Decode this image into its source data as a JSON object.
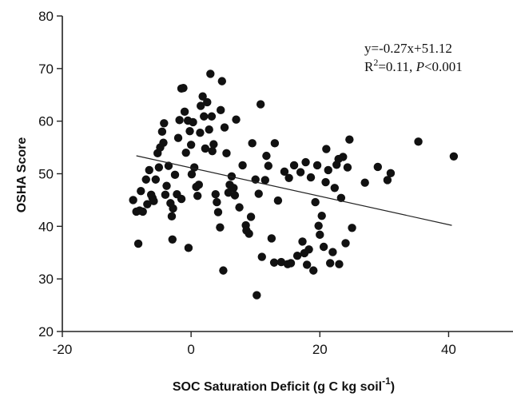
{
  "chart_data": {
    "type": "scatter",
    "xlabel": "SOC Saturation Deficit (g C kg soil",
    "xlabel_superscript": "-1",
    "xlabel_close": ")",
    "ylabel": "OSHA Score",
    "xlim": [
      -20,
      50
    ],
    "ylim": [
      20,
      80
    ],
    "xticks": [
      -20,
      0,
      20,
      40
    ],
    "yticks": [
      20,
      30,
      40,
      50,
      60,
      70,
      80
    ],
    "grid": false,
    "annotations": {
      "equation": "y=-0.27x+51.12",
      "r2_prefix": "R",
      "r2_sup": "2",
      "r2_mid": "=0.11, ",
      "p_italic": "P",
      "p_suffix": "<0.001"
    },
    "fit_line": {
      "slope": -0.27,
      "intercept": 51.12,
      "x_range": [
        -8.5,
        40.5
      ]
    },
    "points": [
      [
        -8.5,
        42.8
      ],
      [
        -8.2,
        36.7
      ],
      [
        -8.0,
        43.0
      ],
      [
        -7.8,
        46.7
      ],
      [
        -7.5,
        42.8
      ],
      [
        -7.0,
        48.9
      ],
      [
        -6.5,
        50.7
      ],
      [
        -6.2,
        46.0
      ],
      [
        -6.0,
        45.4
      ],
      [
        -5.8,
        44.8
      ],
      [
        -5.5,
        48.9
      ],
      [
        -5.2,
        53.9
      ],
      [
        -5.0,
        51.2
      ],
      [
        -4.8,
        55.0
      ],
      [
        -4.5,
        58.0
      ],
      [
        -4.2,
        59.6
      ],
      [
        -4.0,
        46.0
      ],
      [
        -3.8,
        47.7
      ],
      [
        -3.5,
        51.5
      ],
      [
        -3.2,
        44.4
      ],
      [
        -3.0,
        41.9
      ],
      [
        -2.8,
        43.4
      ],
      [
        -2.5,
        49.8
      ],
      [
        -2.2,
        46.1
      ],
      [
        -2.0,
        56.8
      ],
      [
        -1.8,
        60.2
      ],
      [
        -1.5,
        66.2
      ],
      [
        -1.2,
        66.3
      ],
      [
        -1.0,
        61.8
      ],
      [
        -0.8,
        54.0
      ],
      [
        -0.5,
        60.1
      ],
      [
        -0.2,
        58.1
      ],
      [
        0.0,
        55.5
      ],
      [
        0.3,
        59.8
      ],
      [
        0.5,
        51.2
      ],
      [
        0.8,
        47.5
      ],
      [
        1.0,
        45.8
      ],
      [
        1.2,
        47.9
      ],
      [
        1.5,
        62.9
      ],
      [
        1.8,
        64.7
      ],
      [
        2.0,
        60.9
      ],
      [
        2.2,
        54.8
      ],
      [
        2.5,
        63.6
      ],
      [
        2.8,
        58.4
      ],
      [
        3.0,
        69.0
      ],
      [
        3.2,
        60.9
      ],
      [
        3.5,
        55.6
      ],
      [
        3.8,
        46.1
      ],
      [
        4.0,
        44.6
      ],
      [
        4.2,
        42.7
      ],
      [
        4.5,
        39.8
      ],
      [
        4.8,
        67.6
      ],
      [
        5.0,
        31.6
      ],
      [
        5.2,
        58.8
      ],
      [
        5.5,
        53.9
      ],
      [
        5.8,
        46.4
      ],
      [
        6.0,
        47.9
      ],
      [
        6.3,
        49.5
      ],
      [
        6.6,
        47.3
      ],
      [
        7.0,
        60.3
      ],
      [
        7.5,
        43.6
      ],
      [
        8.0,
        51.6
      ],
      [
        8.5,
        40.2
      ],
      [
        9.0,
        38.6
      ],
      [
        9.5,
        55.8
      ],
      [
        10.0,
        48.9
      ],
      [
        10.2,
        26.9
      ],
      [
        10.5,
        46.2
      ],
      [
        10.8,
        63.2
      ],
      [
        11.0,
        34.2
      ],
      [
        11.5,
        48.8
      ],
      [
        12.0,
        51.5
      ],
      [
        12.5,
        37.7
      ],
      [
        13.0,
        55.8
      ],
      [
        13.5,
        44.9
      ],
      [
        14.0,
        33.2
      ],
      [
        14.5,
        50.4
      ],
      [
        15.0,
        32.8
      ],
      [
        15.5,
        33.0
      ],
      [
        16.0,
        51.6
      ],
      [
        16.5,
        34.4
      ],
      [
        17.0,
        50.3
      ],
      [
        17.3,
        37.1
      ],
      [
        17.6,
        34.9
      ],
      [
        18.0,
        32.7
      ],
      [
        18.3,
        35.6
      ],
      [
        18.6,
        49.3
      ],
      [
        19.0,
        31.6
      ],
      [
        19.3,
        44.6
      ],
      [
        19.6,
        51.6
      ],
      [
        20.0,
        38.4
      ],
      [
        20.3,
        42.0
      ],
      [
        20.6,
        36.1
      ],
      [
        21.0,
        54.7
      ],
      [
        21.3,
        50.7
      ],
      [
        21.6,
        33.0
      ],
      [
        22.0,
        35.1
      ],
      [
        22.3,
        47.3
      ],
      [
        22.6,
        51.7
      ],
      [
        23.0,
        32.8
      ],
      [
        23.3,
        45.4
      ],
      [
        23.6,
        53.2
      ],
      [
        24.0,
        36.8
      ],
      [
        24.3,
        51.2
      ],
      [
        24.6,
        56.5
      ],
      [
        25.0,
        39.7
      ],
      [
        27.0,
        48.3
      ],
      [
        29.0,
        51.3
      ],
      [
        30.5,
        48.8
      ],
      [
        31.0,
        50.1
      ],
      [
        35.3,
        56.1
      ],
      [
        40.8,
        53.3
      ],
      [
        -9.0,
        45.0
      ],
      [
        -6.8,
        44.2
      ],
      [
        -4.3,
        55.9
      ],
      [
        -1.5,
        45.2
      ],
      [
        0.1,
        49.9
      ],
      [
        1.4,
        57.8
      ],
      [
        3.3,
        54.3
      ],
      [
        6.8,
        45.9
      ],
      [
        9.3,
        41.8
      ],
      [
        11.7,
        53.4
      ],
      [
        15.2,
        49.2
      ],
      [
        17.8,
        52.2
      ],
      [
        20.9,
        48.4
      ],
      [
        22.9,
        52.8
      ],
      [
        -2.9,
        37.5
      ],
      [
        -0.4,
        35.9
      ],
      [
        12.9,
        33.1
      ],
      [
        19.8,
        40.1
      ],
      [
        8.6,
        39.2
      ],
      [
        4.6,
        62.1
      ]
    ]
  }
}
